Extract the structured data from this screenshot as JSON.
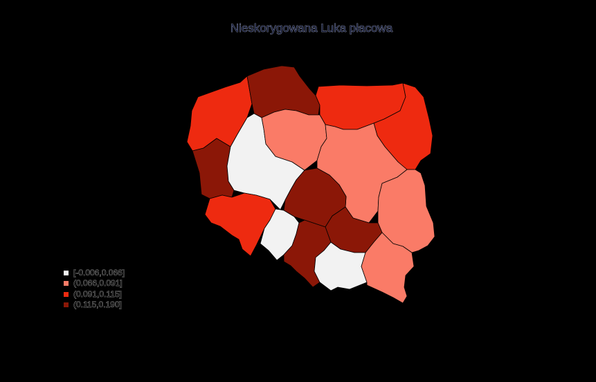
{
  "title": "Nieskorygowana Luka płacowa",
  "colors": {
    "background": "#000000",
    "class_1": "#f2f2f2",
    "class_2": "#fa7b67",
    "class_3": "#ee2a10",
    "class_4": "#8b1707"
  },
  "legend": [
    {
      "label": "[-0.006,0.066]",
      "color": "#f2f2f2"
    },
    {
      "label": "(0.066,0.091]",
      "color": "#fa7b67"
    },
    {
      "label": "(0.091,0.115]",
      "color": "#ee2a10"
    },
    {
      "label": "(0.115,0.190]",
      "color": "#8b1707"
    }
  ]
}
